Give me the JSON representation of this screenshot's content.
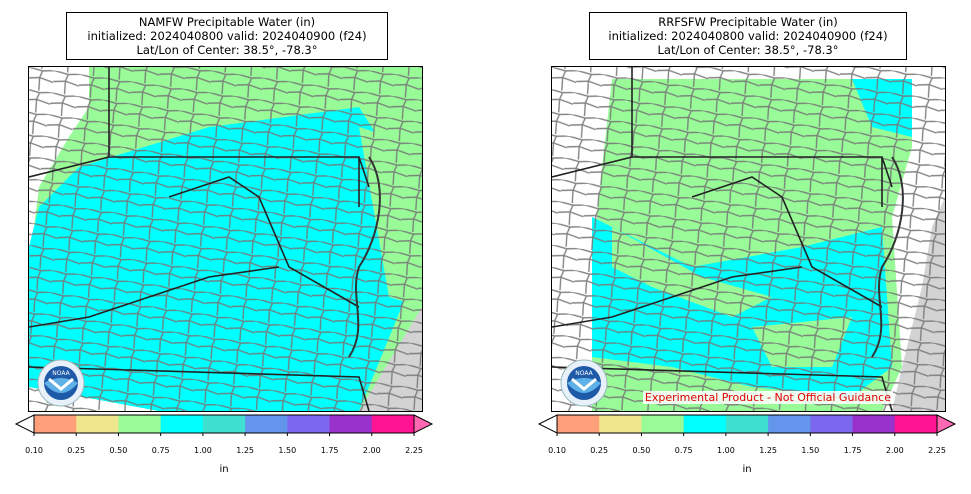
{
  "panels": [
    {
      "title_line1": "NAMFW Precipitable Water (in)",
      "title_line2": "initialized: 2024040800 valid: 2024040900 (f24)",
      "title_line3": "Lat/Lon of Center: 38.5°, -78.3°",
      "disclaimer": ""
    },
    {
      "title_line1": "RRFSFW Precipitable Water (in)",
      "title_line2": "initialized: 2024040800 valid: 2024040900 (f24)",
      "title_line3": "Lat/Lon of Center: 38.5°, -78.3°",
      "disclaimer": "Experimental Product - Not Official Guidance"
    }
  ],
  "colorbar": {
    "unit": "in",
    "ticks": [
      "0.10",
      "0.25",
      "0.50",
      "0.75",
      "1.00",
      "1.25",
      "1.50",
      "1.75",
      "2.00",
      "2.25"
    ],
    "under_color": "#ffffff",
    "over_color": "#ff69b4",
    "colors": [
      "#ffa07a",
      "#f0e68c",
      "#98fb98",
      "#00ffff",
      "#40e0d0",
      "#6495ed",
      "#7b68ee",
      "#9932cc",
      "#ff1493"
    ]
  },
  "legend": {
    "logo": "noaa-logo",
    "logo_text": "NOAA"
  },
  "colors": {
    "ocean": "#d3d3d3",
    "county_lines": "#777777",
    "state_lines": "#222222",
    "pw_light_green": "#98fb98",
    "pw_cyan": "#00ffff"
  }
}
